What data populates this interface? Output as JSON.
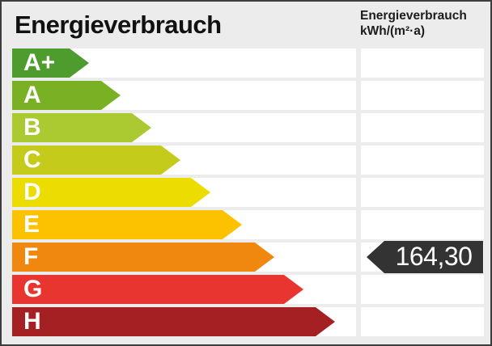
{
  "header": {
    "title": "Energieverbrauch",
    "unit_line1": "Energieverbrauch",
    "unit_line2": "kWh/(m²·a)"
  },
  "scale": {
    "bands": [
      {
        "label": "A+",
        "color": "#4f9c2e"
      },
      {
        "label": "A",
        "color": "#7ab024"
      },
      {
        "label": "B",
        "color": "#abca32"
      },
      {
        "label": "C",
        "color": "#c4cb1b"
      },
      {
        "label": "D",
        "color": "#ecdc00"
      },
      {
        "label": "E",
        "color": "#fcc200"
      },
      {
        "label": "F",
        "color": "#f0870e"
      },
      {
        "label": "G",
        "color": "#e83530"
      },
      {
        "label": "H",
        "color": "#a52022"
      }
    ]
  },
  "marker": {
    "value": "164,30",
    "band": "F",
    "color": "#333333",
    "text_color": "#ffffff"
  },
  "chart_data": {
    "type": "bar",
    "title": "Energieverbrauch",
    "ylabel": "Energieverbrauch kWh/(m²·a)",
    "categories": [
      "A+",
      "A",
      "B",
      "C",
      "D",
      "E",
      "F",
      "G",
      "H"
    ],
    "colors": [
      "#4f9c2e",
      "#7ab024",
      "#abca32",
      "#c4cb1b",
      "#ecdc00",
      "#fcc200",
      "#f0870e",
      "#e83530",
      "#a52022"
    ],
    "marker": {
      "value": 164.3,
      "value_text": "164,30",
      "band": "F",
      "unit": "kWh/(m²·a)"
    },
    "legend_position": "none",
    "grid": false
  }
}
